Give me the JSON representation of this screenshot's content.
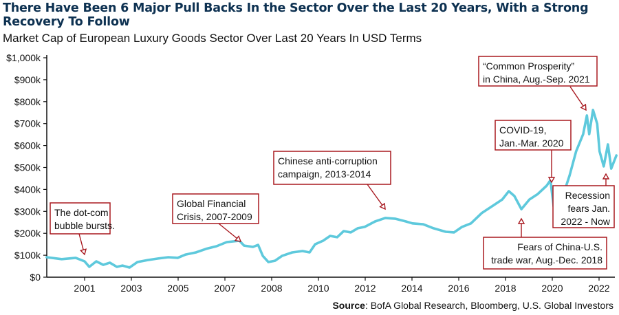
{
  "header": {
    "title": "There Have Been 6 Major Pull Backs In the Sector Over the Last 20 Years, With a Strong Recovery To Follow",
    "subtitle": "Market Cap of European Luxury Goods Sector Over Last 20 Years In USD Terms"
  },
  "footer": {
    "source_label": "Source",
    "source_text": ": BofA Global Research, Bloomberg, U.S. Global Investors"
  },
  "colors": {
    "line": "#5ec9dc",
    "annotation_border": "#a8181f",
    "title": "#0d3151"
  },
  "chart_data": {
    "type": "line",
    "title": "There Have Been 6 Major Pull Backs In the Sector Over the Last 20 Years, With a Strong Recovery To Follow",
    "subtitle": "Market Cap of European Luxury Goods Sector Over Last 20 Years In USD Terms",
    "xlabel": "",
    "ylabel": "",
    "x_tick_labels": [
      "2001",
      "2003",
      "2005",
      "2007",
      "2008",
      "2010",
      "2012",
      "2014",
      "2016",
      "2018",
      "2020",
      "2022"
    ],
    "x_note": "x values are tick-index positions (0 = first tick '2001', 11 = last tick '2022')",
    "xlim": [
      -0.81,
      11.4
    ],
    "y_ticks": [
      0,
      100,
      200,
      300,
      400,
      500,
      600,
      700,
      800,
      900,
      1000
    ],
    "y_tick_labels": [
      "$0",
      "$100k",
      "$200k",
      "$300k",
      "$400k",
      "$500k",
      "$600k",
      "$700k",
      "$800k",
      "$900k",
      "$1,000k"
    ],
    "ylim": [
      0,
      1000
    ],
    "grid": false,
    "legend": "none",
    "series": [
      {
        "name": "Market Cap (USD, thousands)",
        "points": [
          [
            -0.81,
            91
          ],
          [
            -0.49,
            82
          ],
          [
            -0.19,
            88
          ],
          [
            0,
            72
          ],
          [
            0.1,
            47
          ],
          [
            0.25,
            72
          ],
          [
            0.4,
            56
          ],
          [
            0.54,
            66
          ],
          [
            0.69,
            47
          ],
          [
            0.81,
            53
          ],
          [
            0.96,
            44
          ],
          [
            1.13,
            69
          ],
          [
            1.35,
            78
          ],
          [
            1.57,
            85
          ],
          [
            1.79,
            91
          ],
          [
            1.99,
            88
          ],
          [
            2.16,
            103
          ],
          [
            2.38,
            113
          ],
          [
            2.6,
            129
          ],
          [
            2.82,
            141
          ],
          [
            3.04,
            160
          ],
          [
            3.31,
            166
          ],
          [
            3.41,
            144
          ],
          [
            3.6,
            138
          ],
          [
            3.71,
            147
          ],
          [
            3.81,
            97
          ],
          [
            3.93,
            69
          ],
          [
            4.07,
            75
          ],
          [
            4.22,
            97
          ],
          [
            4.44,
            113
          ],
          [
            4.66,
            119
          ],
          [
            4.81,
            113
          ],
          [
            4.93,
            150
          ],
          [
            5.1,
            166
          ],
          [
            5.25,
            188
          ],
          [
            5.4,
            182
          ],
          [
            5.54,
            210
          ],
          [
            5.69,
            204
          ],
          [
            5.84,
            223
          ],
          [
            5.99,
            229
          ],
          [
            6.21,
            254
          ],
          [
            6.43,
            270
          ],
          [
            6.65,
            266
          ],
          [
            6.87,
            254
          ],
          [
            7.01,
            245
          ],
          [
            7.24,
            241
          ],
          [
            7.46,
            223
          ],
          [
            7.72,
            207
          ],
          [
            7.9,
            204
          ],
          [
            8.07,
            229
          ],
          [
            8.26,
            245
          ],
          [
            8.49,
            292
          ],
          [
            8.71,
            323
          ],
          [
            8.93,
            354
          ],
          [
            9.07,
            392
          ],
          [
            9.19,
            370
          ],
          [
            9.34,
            310
          ],
          [
            9.51,
            354
          ],
          [
            9.69,
            379
          ],
          [
            9.88,
            417
          ],
          [
            9.96,
            442
          ],
          [
            10.03,
            323
          ],
          [
            10.13,
            370
          ],
          [
            10.25,
            386
          ],
          [
            10.37,
            464
          ],
          [
            10.51,
            574
          ],
          [
            10.66,
            652
          ],
          [
            10.74,
            737
          ],
          [
            10.79,
            652
          ],
          [
            10.87,
            762
          ],
          [
            10.96,
            699
          ],
          [
            11.01,
            574
          ],
          [
            11.1,
            505
          ],
          [
            11.19,
            605
          ],
          [
            11.26,
            495
          ],
          [
            11.37,
            555
          ]
        ]
      }
    ],
    "annotations": [
      {
        "id": "dotcom",
        "lines": [
          "The dot-com",
          "bubble bursts."
        ],
        "align": "left",
        "target": [
          0,
          72
        ]
      },
      {
        "id": "gfc",
        "lines": [
          "Global Financial",
          "Crisis, 2007-2009"
        ],
        "align": "left",
        "target": [
          3.31,
          166
        ]
      },
      {
        "id": "china-anticorruption",
        "lines": [
          "Chinese anti-corruption",
          "campaign, 2013-2014"
        ],
        "align": "left",
        "target": [
          6.43,
          310
        ]
      },
      {
        "id": "trade-war",
        "lines": [
          "Fears of China-U.S.",
          "trade war, Aug.-Dec. 2018"
        ],
        "align": "right",
        "target": [
          9.34,
          290
        ]
      },
      {
        "id": "covid",
        "lines": [
          "COVID-19,",
          "Jan.-Mar. 2020"
        ],
        "align": "left",
        "target": [
          10.03,
          430
        ]
      },
      {
        "id": "common-prosperity",
        "lines": [
          "“Common Prosperity”",
          "in China, Aug.-Sep. 2021"
        ],
        "align": "left",
        "target": [
          10.79,
          760
        ]
      },
      {
        "id": "recession",
        "lines": [
          "Recession",
          "fears Jan.",
          "2022 - Now"
        ],
        "align": "right",
        "target": [
          11.2,
          470
        ]
      }
    ]
  }
}
